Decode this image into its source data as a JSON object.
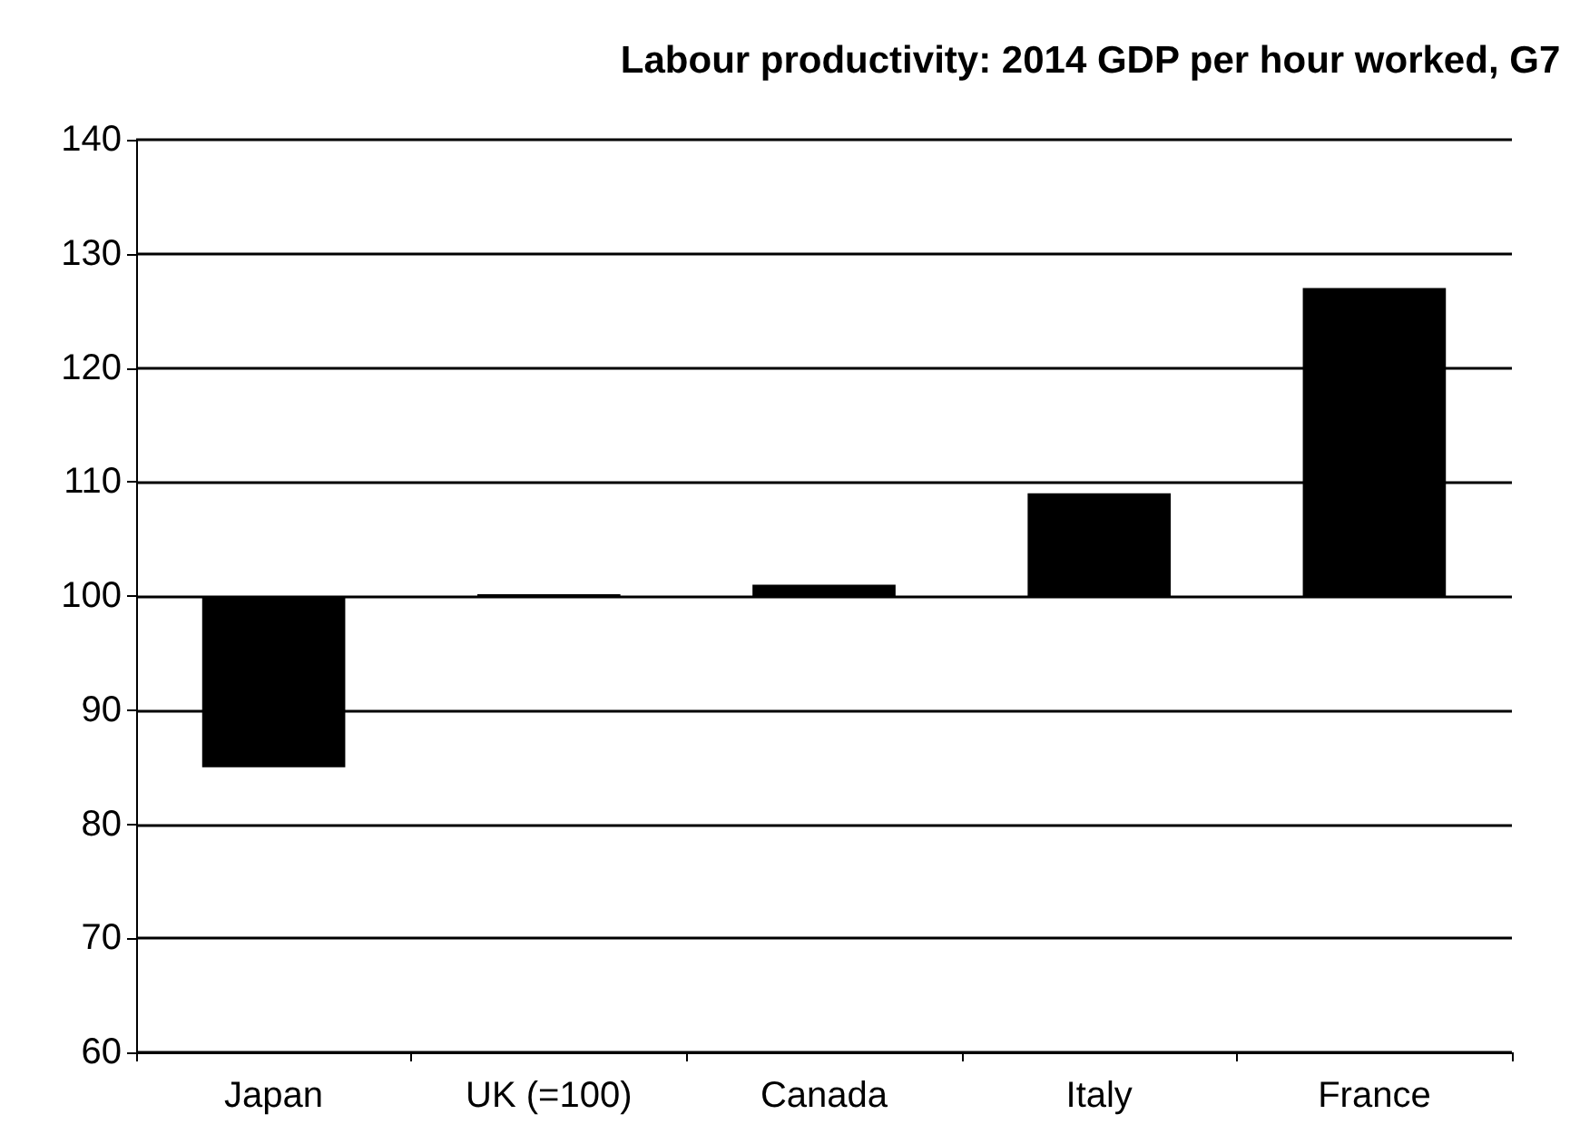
{
  "chart_data": {
    "type": "bar",
    "title": "Labour productivity: 2014 GDP per hour worked, G7",
    "categories": [
      "Japan",
      "UK (=100)",
      "Canada",
      "Italy",
      "France"
    ],
    "base": [
      100,
      100,
      100,
      100,
      100
    ],
    "values": [
      -15,
      0,
      1,
      9,
      27
    ],
    "color": "#000000",
    "ylim": [
      60,
      140
    ],
    "yticks": [
      60,
      70,
      80,
      90,
      100,
      110,
      120,
      130,
      140
    ],
    "grid": "y"
  }
}
